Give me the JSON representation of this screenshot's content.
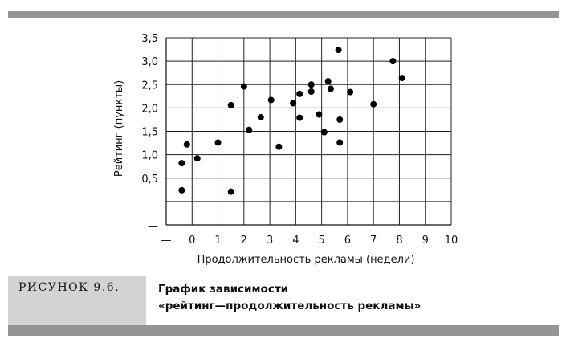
{
  "figure": {
    "label": "РИСУНОК 9.6.",
    "title_line1": "График зависимости",
    "title_line2": "«рейтинг—продолжительность рекламы»"
  },
  "chart_data": {
    "type": "scatter",
    "xlabel": "Продолжительность рекламы (недели)",
    "ylabel": "Рейтинг (пункты)",
    "xlim": [
      -1,
      10
    ],
    "ylim": [
      -0.5,
      3.5
    ],
    "x_ticks": [
      -1,
      0,
      1,
      2,
      3,
      4,
      5,
      6,
      7,
      8,
      9,
      10
    ],
    "x_tick_labels": [
      "—",
      "0",
      "1",
      "2",
      "3",
      "4",
      "5",
      "6",
      "7",
      "8",
      "9",
      "10"
    ],
    "y_ticks": [
      -0.5,
      0,
      0.5,
      1.0,
      1.5,
      2.0,
      2.5,
      3.0,
      3.5
    ],
    "y_tick_labels": [
      "—",
      "",
      "0,5",
      "1,0",
      "1,5",
      "2,0",
      "2,5",
      "3,0",
      "3,5"
    ],
    "grid": true,
    "marker_color": "#000000",
    "points": [
      {
        "x": -0.4,
        "y": 0.82
      },
      {
        "x": -0.4,
        "y": 0.24
      },
      {
        "x": -0.2,
        "y": 1.22
      },
      {
        "x": 0.2,
        "y": 0.92
      },
      {
        "x": 1.0,
        "y": 1.26
      },
      {
        "x": 1.5,
        "y": 2.06
      },
      {
        "x": 1.5,
        "y": 0.21
      },
      {
        "x": 2.0,
        "y": 2.46
      },
      {
        "x": 2.2,
        "y": 1.53
      },
      {
        "x": 2.65,
        "y": 1.8
      },
      {
        "x": 3.05,
        "y": 2.17
      },
      {
        "x": 3.35,
        "y": 1.17
      },
      {
        "x": 3.9,
        "y": 2.1
      },
      {
        "x": 4.15,
        "y": 2.3
      },
      {
        "x": 4.15,
        "y": 1.79
      },
      {
        "x": 4.6,
        "y": 2.5
      },
      {
        "x": 4.6,
        "y": 2.35
      },
      {
        "x": 4.9,
        "y": 1.86
      },
      {
        "x": 5.1,
        "y": 1.48
      },
      {
        "x": 5.25,
        "y": 2.57
      },
      {
        "x": 5.35,
        "y": 2.41
      },
      {
        "x": 5.65,
        "y": 3.24
      },
      {
        "x": 5.7,
        "y": 1.75
      },
      {
        "x": 5.7,
        "y": 1.26
      },
      {
        "x": 6.1,
        "y": 2.34
      },
      {
        "x": 7.0,
        "y": 2.08
      },
      {
        "x": 7.75,
        "y": 3.0
      },
      {
        "x": 8.1,
        "y": 2.64
      }
    ]
  }
}
